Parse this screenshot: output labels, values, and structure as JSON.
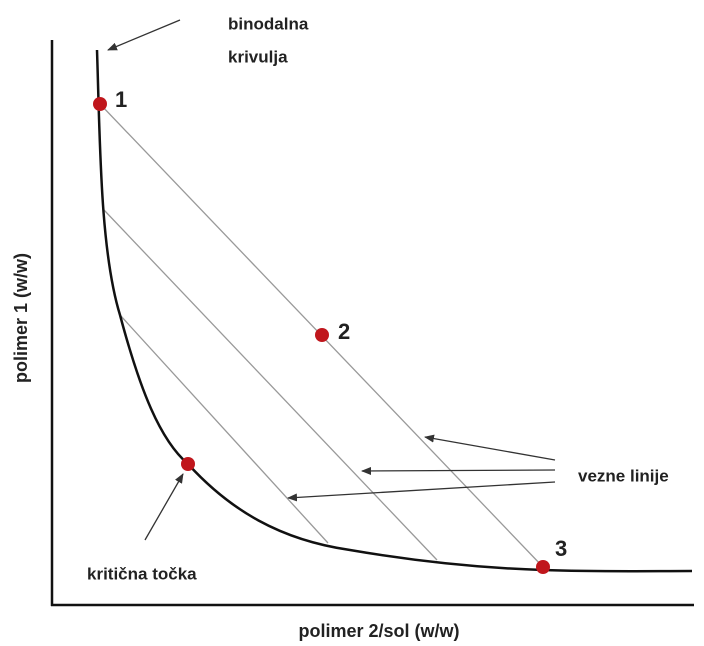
{
  "diagram": {
    "curve_label": [
      "binodalna",
      "krivulja"
    ],
    "points": [
      {
        "label": "1"
      },
      {
        "label": "2"
      },
      {
        "label": "3"
      }
    ],
    "tie_lines_label": "vezne linije",
    "critical_point_label": "kritična točka",
    "x_axis_label": "polimer 2/sol (w/w)",
    "y_axis_label": "polimer 1 (w/w)"
  }
}
